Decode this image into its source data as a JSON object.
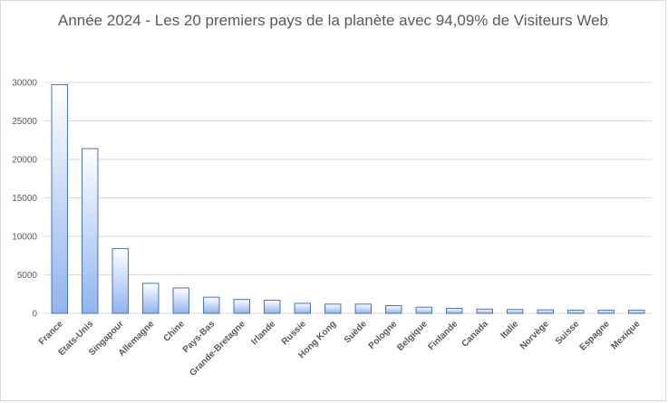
{
  "chart_data": {
    "type": "bar",
    "title": "Année 2024 - Les 20 premiers pays de la planète avec 94,09% de Visiteurs Web",
    "xlabel": "",
    "ylabel": "",
    "ylim": [
      0,
      30000
    ],
    "yticks": [
      0,
      5000,
      10000,
      15000,
      20000,
      25000,
      30000
    ],
    "ytick_labels": [
      "0",
      "5000",
      "10000",
      "15000",
      "20000",
      "25000",
      "30000"
    ],
    "grid": true,
    "legend": "none",
    "categories": [
      "France",
      "Etats-Unis",
      "Singapour",
      "Allemagne",
      "Chine",
      "Pays-Bas",
      "Grande-Bretagne",
      "Irlande",
      "Russie",
      "Hong Kong",
      "Suède",
      "Pologne",
      "Belgique",
      "Finlande",
      "Canada",
      "Italie",
      "Norvège",
      "Suisse",
      "Espagne",
      "Mexique"
    ],
    "values": [
      29700,
      21400,
      8400,
      3900,
      3300,
      2100,
      1800,
      1700,
      1300,
      1200,
      1200,
      1000,
      800,
      650,
      550,
      500,
      450,
      400,
      400,
      400
    ],
    "colors": {
      "bar_top": "#ffffff",
      "bar_bottom": "#8fb4ee",
      "bar_stroke": "#4472c4",
      "grid": "#d9d9d9",
      "text": "#595959"
    }
  }
}
